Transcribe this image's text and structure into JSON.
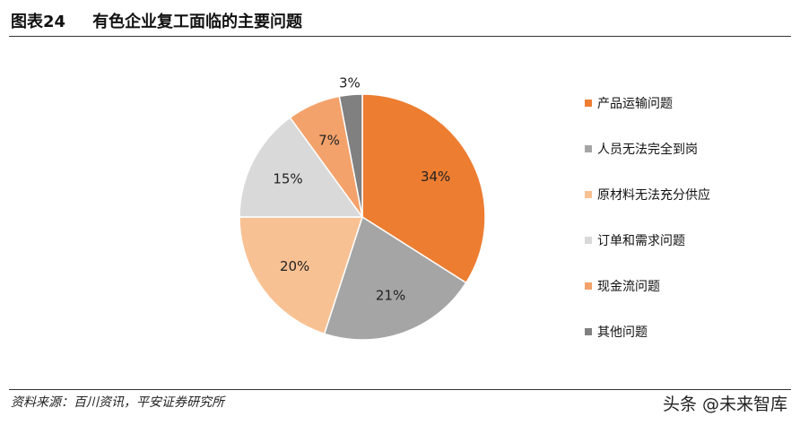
{
  "header": {
    "figure_no": "图表24",
    "title": "有色企业复工面临的主要问题"
  },
  "chart_data": {
    "type": "pie",
    "categories": [
      "产品运输问题",
      "人员无法完全到岗",
      "原材料无法充分供应",
      "订单和需求问题",
      "现金流问题",
      "其他问题"
    ],
    "values": [
      34,
      21,
      20,
      15,
      7,
      3
    ],
    "data_labels": [
      "34%",
      "21%",
      "20%",
      "15%",
      "7%",
      "3%"
    ],
    "colors": [
      "#ED7D31",
      "#A5A5A5",
      "#F8C193",
      "#D9D9D9",
      "#F4A26B",
      "#808080"
    ],
    "start_angle_deg": 0,
    "direction": "clockwise",
    "legend_position": "right"
  },
  "footer": {
    "source": "资料来源：百川资讯，平安证券研究所",
    "watermark": "头条 @未来智库"
  }
}
